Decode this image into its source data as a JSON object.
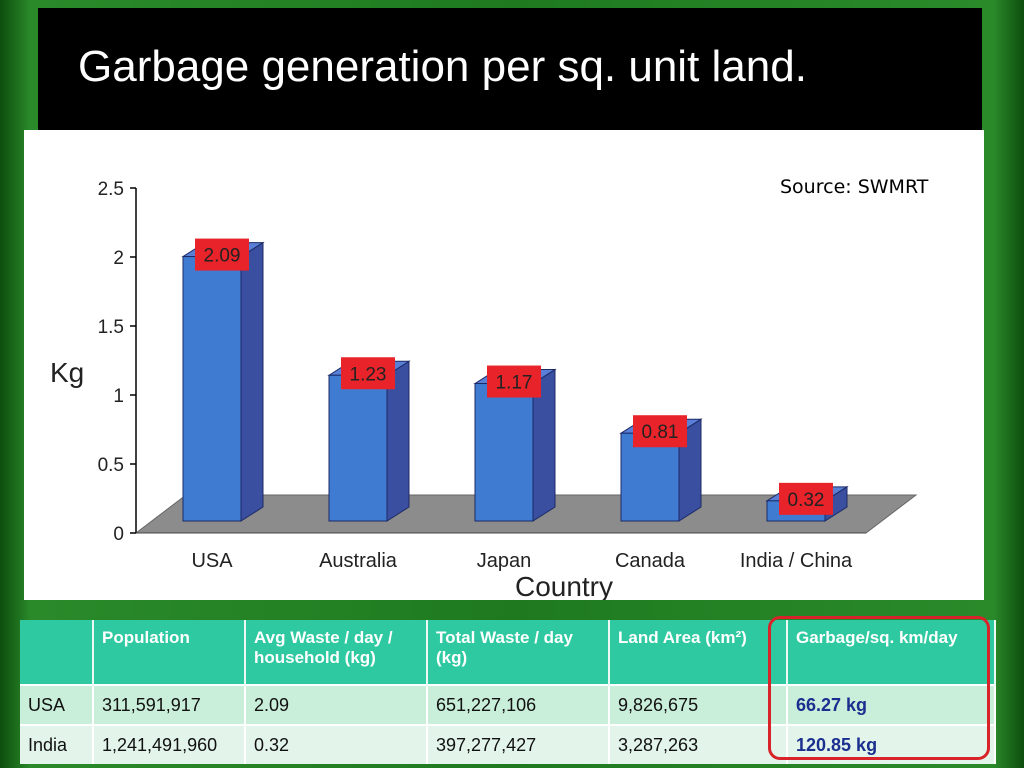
{
  "title": "Garbage generation per sq. unit land.",
  "source": "Source: SWMRT",
  "chart_data": {
    "type": "bar",
    "title": "",
    "xlabel": "Country",
    "ylabel": "Kg",
    "categories": [
      "USA",
      "Australia",
      "Japan",
      "Canada",
      "India / China"
    ],
    "values": [
      2.09,
      1.23,
      1.17,
      0.81,
      0.32
    ],
    "data_labels": [
      "2.09",
      "1.23",
      "1.17",
      "0.81",
      "0.32"
    ],
    "ylim": [
      0,
      2.5
    ],
    "yticks": [
      "0",
      "0.5",
      "1",
      "1.5",
      "2",
      "2.5"
    ],
    "ytick_values": [
      0,
      0.5,
      1,
      1.5,
      2,
      2.5
    ],
    "grid": false,
    "bar_color": "#3f7bd1",
    "label_color": "#e8232a"
  },
  "table": {
    "headers": [
      "",
      "Population",
      "Avg Waste / day / household (kg)",
      "Total Waste / day (kg)",
      "Land Area (km²)",
      "Garbage/sq. km/day"
    ],
    "rows": [
      [
        "USA",
        "311,591,917",
        "2.09",
        "651,227,106",
        "9,826,675",
        "66.27 kg"
      ],
      [
        "India",
        "1,241,491,960",
        "0.32",
        "397,277,427",
        "3,287,263",
        "120.85 kg"
      ]
    ]
  },
  "colors": {
    "header_bg": "#2ec9a0",
    "highlight_border": "#d8232a",
    "highlight_text": "#1a2f8f"
  }
}
